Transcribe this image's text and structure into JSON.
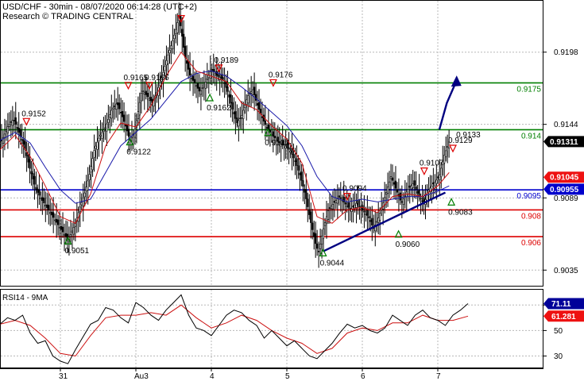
{
  "chart_data": {
    "type": "candlestick",
    "header": {
      "title": "USD/CHF - 30min - 08/07/2020 06:14:28 (UTC+2)",
      "subtitle": "Research © TRADING CENTRAL"
    },
    "x_labels": [
      {
        "label": "31",
        "day": 0.8
      },
      {
        "label": "Au3",
        "day": 1.8
      },
      {
        "label": "4",
        "day": 2.8
      },
      {
        "label": "5",
        "day": 3.8
      },
      {
        "label": "6",
        "day": 4.8
      },
      {
        "label": "7",
        "day": 5.8
      }
    ],
    "price": {
      "ylim": [
        0.90233,
        0.92364
      ],
      "yticks": [
        "0.9198",
        "0.9144",
        "0.9089",
        "0.9035"
      ],
      "last_price": "0.91311",
      "levels": [
        {
          "value": 0.9175,
          "label": "0.9175",
          "color": "#007f00"
        },
        {
          "value": 0.914,
          "label": "0.914",
          "color": "#007f00"
        },
        {
          "value": 0.9095,
          "label": "0.9095",
          "color": "#0000cc"
        },
        {
          "value": 0.908,
          "label": "0.908",
          "color": "#dd0000"
        },
        {
          "value": 0.906,
          "label": "0.906",
          "color": "#dd0000"
        }
      ],
      "badges": [
        {
          "value": 0.91311,
          "label": "0.91311",
          "bg": "#000000"
        },
        {
          "value": 0.91045,
          "label": "0.91045",
          "bg": "#ee1111"
        },
        {
          "value": 0.90955,
          "label": "0.90955",
          "bg": "#0000cc"
        }
      ],
      "close_path": [
        [
          0.0,
          0.913
        ],
        [
          0.05,
          0.9135
        ],
        [
          0.1,
          0.9142
        ],
        [
          0.18,
          0.9148
        ],
        [
          0.25,
          0.9138
        ],
        [
          0.32,
          0.9128
        ],
        [
          0.4,
          0.911
        ],
        [
          0.48,
          0.9095
        ],
        [
          0.55,
          0.9088
        ],
        [
          0.62,
          0.9082
        ],
        [
          0.7,
          0.9075
        ],
        [
          0.78,
          0.9068
        ],
        [
          0.85,
          0.9062
        ],
        [
          0.9,
          0.9058
        ],
        [
          0.94,
          0.9062
        ],
        [
          1.0,
          0.907
        ],
        [
          1.06,
          0.9082
        ],
        [
          1.12,
          0.9092
        ],
        [
          1.18,
          0.9105
        ],
        [
          1.25,
          0.9125
        ],
        [
          1.32,
          0.9135
        ],
        [
          1.4,
          0.9142
        ],
        [
          1.48,
          0.9155
        ],
        [
          1.55,
          0.916
        ],
        [
          1.62,
          0.915
        ],
        [
          1.68,
          0.914
        ],
        [
          1.72,
          0.9132
        ],
        [
          1.78,
          0.9138
        ],
        [
          1.82,
          0.915
        ],
        [
          1.88,
          0.917
        ],
        [
          1.95,
          0.9165
        ],
        [
          2.02,
          0.916
        ],
        [
          2.08,
          0.9168
        ],
        [
          2.15,
          0.918
        ],
        [
          2.22,
          0.9195
        ],
        [
          2.28,
          0.9205
        ],
        [
          2.33,
          0.9215
        ],
        [
          2.37,
          0.9225
        ],
        [
          2.4,
          0.9215
        ],
        [
          2.45,
          0.9195
        ],
        [
          2.52,
          0.918
        ],
        [
          2.58,
          0.9175
        ],
        [
          2.65,
          0.9168
        ],
        [
          2.72,
          0.9175
        ],
        [
          2.8,
          0.9185
        ],
        [
          2.88,
          0.918
        ],
        [
          2.95,
          0.9178
        ],
        [
          3.02,
          0.9168
        ],
        [
          3.08,
          0.9155
        ],
        [
          3.14,
          0.9145
        ],
        [
          3.2,
          0.915
        ],
        [
          3.28,
          0.9165
        ],
        [
          3.35,
          0.917
        ],
        [
          3.4,
          0.916
        ],
        [
          3.48,
          0.9148
        ],
        [
          3.55,
          0.914
        ],
        [
          3.62,
          0.9135
        ],
        [
          3.7,
          0.913
        ],
        [
          3.78,
          0.9128
        ],
        [
          3.85,
          0.9124
        ],
        [
          3.92,
          0.9115
        ],
        [
          3.98,
          0.9105
        ],
        [
          4.05,
          0.909
        ],
        [
          4.12,
          0.907
        ],
        [
          4.18,
          0.9055
        ],
        [
          4.22,
          0.9048
        ],
        [
          4.28,
          0.9065
        ],
        [
          4.35,
          0.908
        ],
        [
          4.42,
          0.9085
        ],
        [
          4.5,
          0.909
        ],
        [
          4.58,
          0.9084
        ],
        [
          4.65,
          0.908
        ],
        [
          4.72,
          0.9085
        ],
        [
          4.8,
          0.908
        ],
        [
          4.88,
          0.9075
        ],
        [
          4.95,
          0.9066
        ],
        [
          5.02,
          0.9075
        ],
        [
          5.1,
          0.909
        ],
        [
          5.18,
          0.9105
        ],
        [
          5.25,
          0.9095
        ],
        [
          5.32,
          0.9085
        ],
        [
          5.4,
          0.9095
        ],
        [
          5.48,
          0.91
        ],
        [
          5.55,
          0.909
        ],
        [
          5.62,
          0.9085
        ],
        [
          5.68,
          0.9095
        ],
        [
          5.75,
          0.91
        ],
        [
          5.82,
          0.9105
        ],
        [
          5.88,
          0.912
        ],
        [
          5.95,
          0.9131
        ]
      ],
      "ma_fast": [
        [
          0.0,
          0.9125
        ],
        [
          0.2,
          0.9136
        ],
        [
          0.4,
          0.912
        ],
        [
          0.6,
          0.9098
        ],
        [
          0.8,
          0.9075
        ],
        [
          1.0,
          0.907
        ],
        [
          1.2,
          0.9092
        ],
        [
          1.4,
          0.9128
        ],
        [
          1.6,
          0.9145
        ],
        [
          1.8,
          0.9142
        ],
        [
          2.0,
          0.9158
        ],
        [
          2.2,
          0.918
        ],
        [
          2.4,
          0.9198
        ],
        [
          2.6,
          0.9184
        ],
        [
          2.8,
          0.918
        ],
        [
          3.0,
          0.9176
        ],
        [
          3.2,
          0.916
        ],
        [
          3.4,
          0.9155
        ],
        [
          3.6,
          0.9143
        ],
        [
          3.8,
          0.9133
        ],
        [
          4.0,
          0.9115
        ],
        [
          4.2,
          0.9075
        ],
        [
          4.4,
          0.907
        ],
        [
          4.6,
          0.908
        ],
        [
          4.8,
          0.9082
        ],
        [
          5.0,
          0.9078
        ],
        [
          5.2,
          0.909
        ],
        [
          5.4,
          0.9092
        ],
        [
          5.6,
          0.909
        ],
        [
          5.8,
          0.9098
        ],
        [
          5.95,
          0.9108
        ]
      ],
      "ma_slow": [
        [
          0.0,
          0.9132
        ],
        [
          0.2,
          0.9138
        ],
        [
          0.4,
          0.913
        ],
        [
          0.6,
          0.9112
        ],
        [
          0.8,
          0.9095
        ],
        [
          1.0,
          0.9085
        ],
        [
          1.2,
          0.9088
        ],
        [
          1.4,
          0.9108
        ],
        [
          1.6,
          0.9128
        ],
        [
          1.8,
          0.9138
        ],
        [
          2.0,
          0.9148
        ],
        [
          2.2,
          0.9162
        ],
        [
          2.4,
          0.9176
        ],
        [
          2.6,
          0.9182
        ],
        [
          2.8,
          0.9184
        ],
        [
          3.0,
          0.918
        ],
        [
          3.2,
          0.9172
        ],
        [
          3.4,
          0.9163
        ],
        [
          3.6,
          0.9153
        ],
        [
          3.8,
          0.9143
        ],
        [
          4.0,
          0.9128
        ],
        [
          4.2,
          0.9105
        ],
        [
          4.4,
          0.909
        ],
        [
          4.6,
          0.9086
        ],
        [
          4.8,
          0.9088
        ],
        [
          5.0,
          0.9086
        ],
        [
          5.2,
          0.9088
        ],
        [
          5.4,
          0.909
        ],
        [
          5.6,
          0.909
        ],
        [
          5.8,
          0.9094
        ],
        [
          5.95,
          0.9098
        ]
      ],
      "trendline": [
        [
          4.28,
          0.9049
        ],
        [
          5.9,
          0.9093
        ]
      ],
      "arrow": [
        [
          5.82,
          0.914
        ],
        [
          5.92,
          0.916
        ],
        [
          6.05,
          0.9177
        ]
      ],
      "markers": [
        {
          "day": 0.35,
          "value": 0.9146,
          "dir": "down",
          "label": "0.9152"
        },
        {
          "day": 0.9,
          "value": 0.9057,
          "dir": "up",
          "label": "0.9051"
        },
        {
          "day": 1.72,
          "value": 0.9131,
          "dir": "up",
          "label": "0.9122"
        },
        {
          "day": 1.7,
          "value": 0.9173,
          "dir": "down",
          "label": "0.9165"
        },
        {
          "day": 1.98,
          "value": 0.9173,
          "dir": "down",
          "label": "0.9166"
        },
        {
          "day": 2.4,
          "value": 0.9223,
          "dir": "down",
          "label": ""
        },
        {
          "day": 2.9,
          "value": 0.9186,
          "dir": "down",
          "label": "0.9189"
        },
        {
          "day": 2.78,
          "value": 0.9164,
          "dir": "up",
          "label": "0.9162"
        },
        {
          "day": 3.55,
          "value": 0.9138,
          "dir": "up",
          "label": "0.9135"
        },
        {
          "day": 3.62,
          "value": 0.9175,
          "dir": "down",
          "label": "0.9176"
        },
        {
          "day": 4.6,
          "value": 0.909,
          "dir": "down",
          "label": "0.9094"
        },
        {
          "day": 4.28,
          "value": 0.9048,
          "dir": "up",
          "label": "0.9044"
        },
        {
          "day": 5.28,
          "value": 0.9062,
          "dir": "up",
          "label": "0.9060"
        },
        {
          "day": 5.62,
          "value": 0.9109,
          "dir": "down",
          "label": "0.9107"
        },
        {
          "day": 6.0,
          "value": 0.9126,
          "dir": "down",
          "label": "0.9129"
        },
        {
          "day": 6.38,
          "value": 0.9133,
          "dir": "none",
          "label": "0.9133"
        },
        {
          "day": 5.98,
          "value": 0.9086,
          "dir": "up",
          "label": "0.9083"
        }
      ]
    },
    "rsi": {
      "title": "RSI14 - 9MA",
      "ylim": [
        21.0,
        82.0
      ],
      "yticks": [
        "70",
        "50",
        "30"
      ],
      "badges": [
        {
          "value": 71.11,
          "label": "71.11",
          "bg": "#000099"
        },
        {
          "value": 61.281,
          "label": "61.281",
          "bg": "#ee1111"
        }
      ],
      "rsi_path": [
        [
          0.0,
          55
        ],
        [
          0.1,
          60
        ],
        [
          0.2,
          58
        ],
        [
          0.3,
          62
        ],
        [
          0.4,
          48
        ],
        [
          0.5,
          40
        ],
        [
          0.6,
          42
        ],
        [
          0.7,
          30
        ],
        [
          0.8,
          26
        ],
        [
          0.9,
          24
        ],
        [
          1.0,
          35
        ],
        [
          1.1,
          45
        ],
        [
          1.2,
          55
        ],
        [
          1.3,
          58
        ],
        [
          1.4,
          68
        ],
        [
          1.5,
          66
        ],
        [
          1.6,
          60
        ],
        [
          1.7,
          56
        ],
        [
          1.8,
          72
        ],
        [
          1.9,
          68
        ],
        [
          2.0,
          62
        ],
        [
          2.1,
          58
        ],
        [
          2.2,
          66
        ],
        [
          2.3,
          72
        ],
        [
          2.4,
          78
        ],
        [
          2.5,
          62
        ],
        [
          2.6,
          52
        ],
        [
          2.7,
          50
        ],
        [
          2.8,
          46
        ],
        [
          2.9,
          54
        ],
        [
          3.0,
          62
        ],
        [
          3.1,
          66
        ],
        [
          3.2,
          64
        ],
        [
          3.3,
          58
        ],
        [
          3.4,
          54
        ],
        [
          3.5,
          44
        ],
        [
          3.6,
          50
        ],
        [
          3.7,
          44
        ],
        [
          3.8,
          38
        ],
        [
          3.9,
          42
        ],
        [
          4.0,
          36
        ],
        [
          4.1,
          30
        ],
        [
          4.2,
          28
        ],
        [
          4.3,
          34
        ],
        [
          4.4,
          40
        ],
        [
          4.5,
          48
        ],
        [
          4.6,
          55
        ],
        [
          4.7,
          52
        ],
        [
          4.8,
          54
        ],
        [
          4.9,
          50
        ],
        [
          5.0,
          48
        ],
        [
          5.1,
          52
        ],
        [
          5.2,
          62
        ],
        [
          5.3,
          58
        ],
        [
          5.4,
          54
        ],
        [
          5.5,
          62
        ],
        [
          5.6,
          66
        ],
        [
          5.7,
          60
        ],
        [
          5.8,
          58
        ],
        [
          5.9,
          54
        ],
        [
          6.0,
          62
        ],
        [
          6.1,
          66
        ],
        [
          6.2,
          71.1
        ]
      ],
      "ma_path": [
        [
          0.0,
          55
        ],
        [
          0.2,
          58
        ],
        [
          0.4,
          54
        ],
        [
          0.6,
          44
        ],
        [
          0.8,
          32
        ],
        [
          1.0,
          30
        ],
        [
          1.2,
          46
        ],
        [
          1.4,
          60
        ],
        [
          1.6,
          62
        ],
        [
          1.8,
          62
        ],
        [
          2.0,
          64
        ],
        [
          2.2,
          62
        ],
        [
          2.4,
          70
        ],
        [
          2.6,
          60
        ],
        [
          2.8,
          52
        ],
        [
          3.0,
          56
        ],
        [
          3.2,
          62
        ],
        [
          3.4,
          58
        ],
        [
          3.6,
          50
        ],
        [
          3.8,
          44
        ],
        [
          4.0,
          40
        ],
        [
          4.2,
          32
        ],
        [
          4.4,
          36
        ],
        [
          4.6,
          48
        ],
        [
          4.8,
          52
        ],
        [
          5.0,
          50
        ],
        [
          5.2,
          56
        ],
        [
          5.4,
          56
        ],
        [
          5.6,
          62
        ],
        [
          5.8,
          58
        ],
        [
          6.0,
          58
        ],
        [
          6.2,
          61.3
        ]
      ]
    }
  }
}
